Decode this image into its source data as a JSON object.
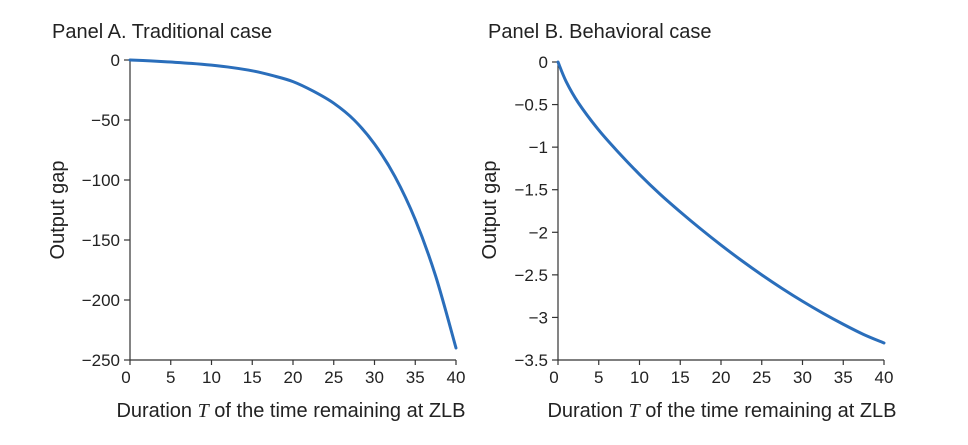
{
  "chart_data": [
    {
      "type": "line",
      "title": "Panel A. Traditional case",
      "xlabel_pre": "Duration ",
      "xlabel_var": "T",
      "xlabel_post": " of the time remaining at ZLB",
      "ylabel": "Output gap",
      "xlim": [
        0,
        40
      ],
      "ylim": [
        -250,
        0
      ],
      "xticks": [
        0,
        5,
        10,
        15,
        20,
        25,
        30,
        35,
        40
      ],
      "xtick_labels": [
        "0",
        "5",
        "10",
        "15",
        "20",
        "25",
        "30",
        "35",
        "40"
      ],
      "yticks": [
        0,
        -50,
        -100,
        -150,
        -200,
        -250
      ],
      "ytick_labels": [
        "0",
        "−50",
        "−100",
        "−150",
        "−200",
        "−250"
      ],
      "grid": false,
      "series": [
        {
          "color": "#2a6ebb",
          "x": [
            0,
            2.5,
            5,
            7.5,
            10,
            12.5,
            15,
            17.5,
            20,
            22.5,
            25,
            27.5,
            30,
            32.5,
            35,
            37.5,
            40
          ],
          "y": [
            0,
            -0.7,
            -1.7,
            -2.8,
            -4.3,
            -6.3,
            -9,
            -13,
            -18,
            -26,
            -36,
            -50,
            -70,
            -97,
            -133,
            -180,
            -240
          ]
        }
      ]
    },
    {
      "type": "line",
      "title": "Panel B. Behavioral case",
      "xlabel_pre": "Duration ",
      "xlabel_var": "T",
      "xlabel_post": " of the time remaining at ZLB",
      "ylabel": "Output gap",
      "xlim": [
        0,
        40
      ],
      "ylim": [
        -3.5,
        0
      ],
      "xticks": [
        0,
        5,
        10,
        15,
        20,
        25,
        30,
        35,
        40
      ],
      "xtick_labels": [
        "0",
        "5",
        "10",
        "15",
        "20",
        "25",
        "30",
        "35",
        "40"
      ],
      "yticks": [
        0,
        -0.5,
        -1,
        -1.5,
        -2,
        -2.5,
        -3,
        -3.5
      ],
      "ytick_labels": [
        "0",
        "−0.5",
        "−1",
        "−1.5",
        "−2",
        "−2.5",
        "−3",
        "−3.5"
      ],
      "grid": false,
      "series": [
        {
          "color": "#2a6ebb",
          "x": [
            0,
            1,
            2.5,
            5,
            7.5,
            10,
            12.5,
            15,
            17.5,
            20,
            22.5,
            25,
            27.5,
            30,
            32.5,
            35,
            37.5,
            40
          ],
          "y": [
            0,
            -0.23,
            -0.48,
            -0.8,
            -1.07,
            -1.32,
            -1.55,
            -1.76,
            -1.96,
            -2.15,
            -2.33,
            -2.5,
            -2.66,
            -2.81,
            -2.95,
            -3.08,
            -3.2,
            -3.3
          ]
        }
      ]
    }
  ]
}
